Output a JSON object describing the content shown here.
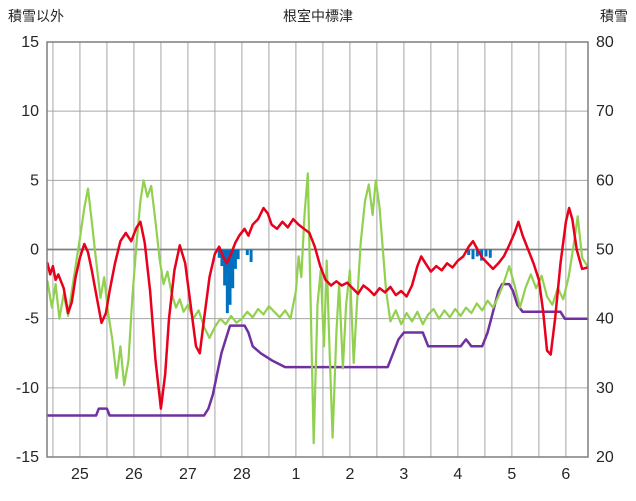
{
  "chart_data": {
    "type": "line",
    "title": "根室中標津",
    "y_left": {
      "label": "積雪以外",
      "min": -15,
      "max": 15,
      "ticks": [
        15,
        10,
        5,
        0,
        -5,
        -10,
        -15
      ]
    },
    "y_right": {
      "label": "積雪",
      "min": 20,
      "max": 80,
      "ticks": [
        80,
        70,
        60,
        50,
        40,
        30,
        20
      ]
    },
    "x_axis": {
      "min": 24.39,
      "max": 34.41,
      "grid_step": 0.5,
      "ticks": [
        {
          "value": 25,
          "label": "25"
        },
        {
          "value": 26,
          "label": "26"
        },
        {
          "value": 27,
          "label": "27"
        },
        {
          "value": 28,
          "label": "28"
        },
        {
          "value": 29,
          "label": "1"
        },
        {
          "value": 30,
          "label": "2"
        },
        {
          "value": 31,
          "label": "3"
        },
        {
          "value": 32,
          "label": "4"
        },
        {
          "value": 33,
          "label": "5"
        },
        {
          "value": 34,
          "label": "6"
        }
      ]
    },
    "colors": {
      "grid": "#a6a6a6",
      "zero_line": "#7f7f7f",
      "frame": "#7f7f7f",
      "text": "#262626",
      "red": "#e8001c",
      "green": "#92d050",
      "purple": "#7030a0",
      "blue": "#0070c0"
    },
    "series": [
      {
        "name": "blue-bars",
        "type": "bar",
        "axis": "left",
        "color": "#0070c0",
        "bar_width_days": 0.055,
        "points": [
          [
            27.58,
            -0.6
          ],
          [
            27.63,
            -1.2
          ],
          [
            27.68,
            -2.6
          ],
          [
            27.73,
            -4.6
          ],
          [
            27.78,
            -4.0
          ],
          [
            27.83,
            -2.8
          ],
          [
            27.88,
            -1.4
          ],
          [
            27.93,
            -0.7
          ],
          [
            28.1,
            -0.4
          ],
          [
            28.17,
            -0.9
          ],
          [
            32.2,
            -0.4
          ],
          [
            32.28,
            -0.7
          ],
          [
            32.36,
            -0.5
          ],
          [
            32.44,
            -0.8
          ],
          [
            32.52,
            -0.5
          ],
          [
            32.6,
            -0.6
          ]
        ]
      },
      {
        "name": "purple-step-line",
        "type": "line",
        "axis": "right",
        "color": "#7030a0",
        "width": 2.5,
        "points": [
          [
            24.4,
            26
          ],
          [
            25.3,
            26
          ],
          [
            25.35,
            27
          ],
          [
            25.5,
            27
          ],
          [
            25.55,
            26
          ],
          [
            27.3,
            26
          ],
          [
            27.38,
            27
          ],
          [
            27.46,
            29
          ],
          [
            27.54,
            32
          ],
          [
            27.62,
            35
          ],
          [
            27.7,
            37
          ],
          [
            27.78,
            39
          ],
          [
            28.05,
            39
          ],
          [
            28.12,
            38
          ],
          [
            28.2,
            36
          ],
          [
            28.35,
            35
          ],
          [
            28.55,
            34
          ],
          [
            28.8,
            33
          ],
          [
            30.7,
            33
          ],
          [
            30.8,
            35
          ],
          [
            30.9,
            37
          ],
          [
            31.0,
            38
          ],
          [
            31.35,
            38
          ],
          [
            31.45,
            36
          ],
          [
            32.05,
            36
          ],
          [
            32.15,
            37
          ],
          [
            32.25,
            36
          ],
          [
            32.45,
            36
          ],
          [
            32.55,
            38
          ],
          [
            32.65,
            41
          ],
          [
            32.75,
            44
          ],
          [
            32.82,
            45
          ],
          [
            32.95,
            45
          ],
          [
            33.02,
            44
          ],
          [
            33.1,
            42
          ],
          [
            33.2,
            41
          ],
          [
            33.9,
            41
          ],
          [
            33.98,
            40
          ],
          [
            34.4,
            40
          ]
        ]
      },
      {
        "name": "green-line",
        "type": "line",
        "axis": "left",
        "color": "#92d050",
        "width": 2.2,
        "points": [
          [
            24.4,
            -2.3
          ],
          [
            24.48,
            -4.2
          ],
          [
            24.55,
            -2.5
          ],
          [
            24.62,
            -5.0
          ],
          [
            24.7,
            -3.2
          ],
          [
            24.78,
            -4.8
          ],
          [
            24.85,
            -3.0
          ],
          [
            24.92,
            -1.2
          ],
          [
            25.0,
            0.8
          ],
          [
            25.08,
            3.0
          ],
          [
            25.15,
            4.4
          ],
          [
            25.22,
            2.0
          ],
          [
            25.3,
            -0.8
          ],
          [
            25.38,
            -3.5
          ],
          [
            25.45,
            -2.0
          ],
          [
            25.52,
            -4.5
          ],
          [
            25.6,
            -6.5
          ],
          [
            25.68,
            -9.3
          ],
          [
            25.75,
            -7.0
          ],
          [
            25.82,
            -9.8
          ],
          [
            25.9,
            -8.0
          ],
          [
            25.97,
            -3.5
          ],
          [
            26.05,
            0.5
          ],
          [
            26.12,
            3.5
          ],
          [
            26.18,
            5.0
          ],
          [
            26.25,
            3.8
          ],
          [
            26.32,
            4.6
          ],
          [
            26.4,
            2.0
          ],
          [
            26.48,
            -0.8
          ],
          [
            26.55,
            -2.5
          ],
          [
            26.62,
            -1.6
          ],
          [
            26.7,
            -3.2
          ],
          [
            26.78,
            -4.2
          ],
          [
            26.85,
            -3.6
          ],
          [
            26.92,
            -4.5
          ],
          [
            27.0,
            -4.0
          ],
          [
            27.1,
            -5.0
          ],
          [
            27.2,
            -4.4
          ],
          [
            27.3,
            -5.6
          ],
          [
            27.4,
            -6.4
          ],
          [
            27.5,
            -5.6
          ],
          [
            27.6,
            -5.0
          ],
          [
            27.7,
            -5.4
          ],
          [
            27.8,
            -4.8
          ],
          [
            27.9,
            -5.3
          ],
          [
            28.0,
            -5.0
          ],
          [
            28.1,
            -4.5
          ],
          [
            28.2,
            -4.9
          ],
          [
            28.3,
            -4.3
          ],
          [
            28.4,
            -4.7
          ],
          [
            28.5,
            -4.1
          ],
          [
            28.6,
            -4.5
          ],
          [
            28.7,
            -4.9
          ],
          [
            28.8,
            -4.4
          ],
          [
            28.9,
            -5.0
          ],
          [
            29.0,
            -3.0
          ],
          [
            29.05,
            -0.5
          ],
          [
            29.1,
            -2.0
          ],
          [
            29.16,
            2.5
          ],
          [
            29.22,
            5.5
          ],
          [
            29.28,
            -5.0
          ],
          [
            29.33,
            -14.0
          ],
          [
            29.4,
            -4.0
          ],
          [
            29.46,
            -1.5
          ],
          [
            29.52,
            -7.0
          ],
          [
            29.57,
            -0.8
          ],
          [
            29.63,
            -8.0
          ],
          [
            29.68,
            -13.6
          ],
          [
            29.75,
            -6.0
          ],
          [
            29.8,
            -2.5
          ],
          [
            29.87,
            -8.6
          ],
          [
            29.93,
            -4.0
          ],
          [
            30.0,
            -1.5
          ],
          [
            30.07,
            -8.2
          ],
          [
            30.13,
            -4.0
          ],
          [
            30.2,
            0.5
          ],
          [
            30.28,
            3.5
          ],
          [
            30.35,
            4.7
          ],
          [
            30.42,
            2.5
          ],
          [
            30.48,
            5.0
          ],
          [
            30.55,
            3.0
          ],
          [
            30.6,
            0.5
          ],
          [
            30.67,
            -3.0
          ],
          [
            30.75,
            -5.2
          ],
          [
            30.85,
            -4.4
          ],
          [
            30.95,
            -5.4
          ],
          [
            31.05,
            -4.6
          ],
          [
            31.15,
            -5.2
          ],
          [
            31.25,
            -4.5
          ],
          [
            31.35,
            -5.4
          ],
          [
            31.45,
            -4.7
          ],
          [
            31.55,
            -4.3
          ],
          [
            31.65,
            -5.0
          ],
          [
            31.75,
            -4.4
          ],
          [
            31.85,
            -4.9
          ],
          [
            31.95,
            -4.3
          ],
          [
            32.05,
            -4.8
          ],
          [
            32.15,
            -4.2
          ],
          [
            32.25,
            -4.6
          ],
          [
            32.35,
            -3.9
          ],
          [
            32.45,
            -4.4
          ],
          [
            32.55,
            -3.7
          ],
          [
            32.65,
            -4.2
          ],
          [
            32.75,
            -3.4
          ],
          [
            32.85,
            -2.4
          ],
          [
            32.95,
            -1.2
          ],
          [
            33.05,
            -2.6
          ],
          [
            33.15,
            -4.2
          ],
          [
            33.25,
            -2.8
          ],
          [
            33.35,
            -1.8
          ],
          [
            33.45,
            -2.8
          ],
          [
            33.55,
            -1.9
          ],
          [
            33.65,
            -3.4
          ],
          [
            33.75,
            -4.0
          ],
          [
            33.85,
            -2.8
          ],
          [
            33.95,
            -3.6
          ],
          [
            34.05,
            -2.0
          ],
          [
            34.15,
            0.5
          ],
          [
            34.22,
            2.4
          ],
          [
            34.3,
            -0.6
          ],
          [
            34.4,
            -1.2
          ]
        ]
      },
      {
        "name": "red-line",
        "type": "line",
        "axis": "left",
        "color": "#e8001c",
        "width": 2.5,
        "points": [
          [
            24.4,
            -1.0
          ],
          [
            24.45,
            -1.8
          ],
          [
            24.5,
            -1.2
          ],
          [
            24.55,
            -2.2
          ],
          [
            24.6,
            -1.8
          ],
          [
            24.7,
            -2.8
          ],
          [
            24.78,
            -4.6
          ],
          [
            24.85,
            -3.8
          ],
          [
            24.92,
            -2.0
          ],
          [
            25.0,
            -0.6
          ],
          [
            25.08,
            0.4
          ],
          [
            25.15,
            -0.2
          ],
          [
            25.22,
            -1.5
          ],
          [
            25.3,
            -3.2
          ],
          [
            25.4,
            -5.3
          ],
          [
            25.48,
            -4.6
          ],
          [
            25.55,
            -3.0
          ],
          [
            25.65,
            -1.0
          ],
          [
            25.75,
            0.6
          ],
          [
            25.85,
            1.2
          ],
          [
            25.95,
            0.6
          ],
          [
            26.05,
            1.6
          ],
          [
            26.12,
            2.0
          ],
          [
            26.2,
            0.5
          ],
          [
            26.3,
            -3.0
          ],
          [
            26.4,
            -8.0
          ],
          [
            26.5,
            -11.5
          ],
          [
            26.58,
            -9.0
          ],
          [
            26.65,
            -5.0
          ],
          [
            26.75,
            -1.5
          ],
          [
            26.85,
            0.3
          ],
          [
            26.95,
            -1.0
          ],
          [
            27.05,
            -4.0
          ],
          [
            27.15,
            -7.0
          ],
          [
            27.22,
            -7.5
          ],
          [
            27.3,
            -5.0
          ],
          [
            27.4,
            -2.0
          ],
          [
            27.5,
            -0.3
          ],
          [
            27.58,
            0.2
          ],
          [
            27.65,
            -0.5
          ],
          [
            27.72,
            -1.0
          ],
          [
            27.8,
            -0.3
          ],
          [
            27.88,
            0.5
          ],
          [
            27.95,
            1.0
          ],
          [
            28.05,
            1.5
          ],
          [
            28.12,
            1.0
          ],
          [
            28.2,
            1.8
          ],
          [
            28.3,
            2.2
          ],
          [
            28.4,
            3.0
          ],
          [
            28.48,
            2.6
          ],
          [
            28.55,
            1.8
          ],
          [
            28.65,
            1.5
          ],
          [
            28.75,
            2.0
          ],
          [
            28.85,
            1.6
          ],
          [
            28.95,
            2.2
          ],
          [
            29.05,
            1.8
          ],
          [
            29.15,
            1.5
          ],
          [
            29.25,
            1.2
          ],
          [
            29.35,
            0.2
          ],
          [
            29.45,
            -1.2
          ],
          [
            29.55,
            -2.2
          ],
          [
            29.65,
            -2.6
          ],
          [
            29.75,
            -2.3
          ],
          [
            29.85,
            -2.6
          ],
          [
            29.95,
            -2.4
          ],
          [
            30.05,
            -2.8
          ],
          [
            30.15,
            -3.2
          ],
          [
            30.25,
            -2.6
          ],
          [
            30.35,
            -2.9
          ],
          [
            30.45,
            -3.3
          ],
          [
            30.55,
            -2.8
          ],
          [
            30.65,
            -3.1
          ],
          [
            30.75,
            -2.7
          ],
          [
            30.85,
            -3.3
          ],
          [
            30.95,
            -3.0
          ],
          [
            31.05,
            -3.4
          ],
          [
            31.15,
            -2.6
          ],
          [
            31.25,
            -1.2
          ],
          [
            31.32,
            -0.5
          ],
          [
            31.4,
            -1.0
          ],
          [
            31.5,
            -1.6
          ],
          [
            31.6,
            -1.2
          ],
          [
            31.7,
            -1.5
          ],
          [
            31.8,
            -1.0
          ],
          [
            31.9,
            -1.3
          ],
          [
            32.0,
            -0.8
          ],
          [
            32.1,
            -0.5
          ],
          [
            32.2,
            0.2
          ],
          [
            32.28,
            0.6
          ],
          [
            32.35,
            0.1
          ],
          [
            32.45,
            -0.6
          ],
          [
            32.55,
            -1.0
          ],
          [
            32.65,
            -1.4
          ],
          [
            32.75,
            -1.0
          ],
          [
            32.85,
            -0.5
          ],
          [
            32.95,
            0.3
          ],
          [
            33.05,
            1.2
          ],
          [
            33.12,
            2.0
          ],
          [
            33.2,
            1.0
          ],
          [
            33.3,
            0.0
          ],
          [
            33.4,
            -1.0
          ],
          [
            33.5,
            -2.2
          ],
          [
            33.58,
            -4.5
          ],
          [
            33.65,
            -7.3
          ],
          [
            33.72,
            -7.6
          ],
          [
            33.8,
            -5.0
          ],
          [
            33.9,
            -1.0
          ],
          [
            34.0,
            2.0
          ],
          [
            34.06,
            3.0
          ],
          [
            34.12,
            2.2
          ],
          [
            34.2,
            0.0
          ],
          [
            34.3,
            -1.4
          ],
          [
            34.4,
            -1.3
          ]
        ]
      }
    ]
  }
}
